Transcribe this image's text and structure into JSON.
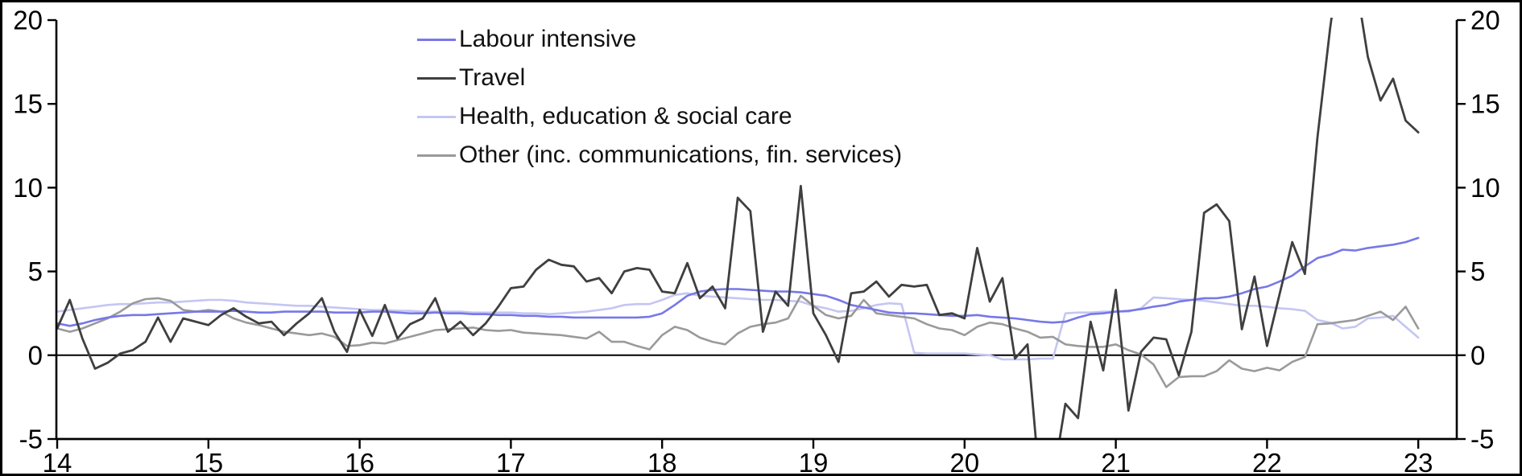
{
  "chart_data": {
    "type": "line",
    "title": "",
    "xlabel": "",
    "ylabel": "",
    "frequency": "monthly",
    "x_start": "Jan 2014",
    "x_end": "Jan 2023",
    "ylim": [
      -5,
      20
    ],
    "grid": false,
    "zero_line": true,
    "legend_position": "top-left-inside",
    "y_ticks": [
      {
        "value": 20,
        "label": "20"
      },
      {
        "value": 15,
        "label": "15"
      },
      {
        "value": 10,
        "label": "10"
      },
      {
        "value": 5,
        "label": "5"
      },
      {
        "value": 0,
        "label": "0"
      },
      {
        "value": -5,
        "label": "-5"
      }
    ],
    "x_ticks": [
      {
        "year": 14,
        "label": "14"
      },
      {
        "year": 15,
        "label": "15"
      },
      {
        "year": 16,
        "label": "16"
      },
      {
        "year": 17,
        "label": "17"
      },
      {
        "year": 18,
        "label": "18"
      },
      {
        "year": 19,
        "label": "19"
      },
      {
        "year": 20,
        "label": "20"
      },
      {
        "year": 21,
        "label": "21"
      },
      {
        "year": 22,
        "label": "22"
      },
      {
        "year": 23,
        "label": "23"
      }
    ],
    "axis_color": "#000000",
    "series": [
      {
        "name": "Labour intensive",
        "color": "#7678e8",
        "values": [
          1.9,
          1.75,
          1.9,
          2.1,
          2.25,
          2.35,
          2.4,
          2.4,
          2.45,
          2.5,
          2.55,
          2.6,
          2.6,
          2.6,
          2.65,
          2.6,
          2.55,
          2.55,
          2.6,
          2.6,
          2.6,
          2.6,
          2.55,
          2.55,
          2.55,
          2.6,
          2.6,
          2.55,
          2.5,
          2.5,
          2.55,
          2.5,
          2.5,
          2.45,
          2.45,
          2.4,
          2.4,
          2.35,
          2.35,
          2.3,
          2.3,
          2.25,
          2.25,
          2.25,
          2.25,
          2.25,
          2.25,
          2.3,
          2.5,
          3.0,
          3.55,
          3.8,
          3.9,
          3.95,
          3.95,
          3.9,
          3.85,
          3.8,
          3.8,
          3.75,
          3.65,
          3.55,
          3.3,
          3.0,
          2.85,
          2.7,
          2.55,
          2.5,
          2.5,
          2.45,
          2.4,
          2.35,
          2.35,
          2.4,
          2.3,
          2.25,
          2.2,
          2.1,
          2.0,
          1.95,
          2.0,
          2.25,
          2.45,
          2.5,
          2.6,
          2.65,
          2.75,
          2.9,
          3.0,
          3.2,
          3.3,
          3.4,
          3.4,
          3.5,
          3.7,
          3.95,
          4.1,
          4.4,
          4.75,
          5.3,
          5.8,
          6.0,
          6.3,
          6.25,
          6.4,
          6.5,
          6.6,
          6.75,
          7.0
        ]
      },
      {
        "name": "Travel",
        "color": "#3f3f3f",
        "values": [
          1.6,
          3.3,
          1.0,
          -0.8,
          -0.45,
          0.1,
          0.3,
          0.8,
          2.25,
          0.8,
          2.2,
          2.0,
          1.8,
          2.4,
          2.8,
          2.3,
          1.9,
          2.0,
          1.2,
          1.9,
          2.5,
          3.4,
          1.4,
          0.2,
          2.7,
          1.15,
          3.0,
          1.0,
          1.85,
          2.2,
          3.4,
          1.4,
          2.0,
          1.2,
          1.9,
          2.9,
          4.0,
          4.1,
          5.1,
          5.7,
          5.4,
          5.3,
          4.4,
          4.6,
          3.7,
          5.0,
          5.2,
          5.1,
          3.8,
          3.7,
          5.5,
          3.4,
          4.1,
          2.8,
          9.4,
          8.6,
          1.4,
          3.8,
          2.95,
          10.1,
          2.5,
          1.2,
          -0.4,
          3.7,
          3.8,
          4.4,
          3.5,
          4.2,
          4.1,
          4.2,
          2.4,
          2.5,
          2.2,
          6.4,
          3.2,
          4.6,
          -0.2,
          0.65,
          -8.0,
          -7.5,
          -2.9,
          -3.75,
          2.0,
          -0.9,
          3.9,
          -3.3,
          0.2,
          1.05,
          0.95,
          -1.2,
          1.4,
          8.5,
          9.0,
          8.0,
          1.55,
          4.7,
          0.55,
          3.65,
          6.75,
          4.85,
          13.0,
          19.5,
          25.0,
          22.5,
          17.8,
          15.2,
          16.5,
          14.0,
          13.3
        ]
      },
      {
        "name": "Health, education & social care",
        "color": "#c4c6f2",
        "values": [
          2.6,
          2.7,
          2.8,
          2.9,
          3.0,
          3.05,
          3.05,
          3.1,
          3.15,
          3.15,
          3.2,
          3.25,
          3.3,
          3.3,
          3.25,
          3.15,
          3.1,
          3.05,
          3.0,
          2.95,
          2.95,
          2.9,
          2.85,
          2.8,
          2.75,
          2.7,
          2.7,
          2.65,
          2.65,
          2.6,
          2.6,
          2.6,
          2.6,
          2.55,
          2.55,
          2.55,
          2.55,
          2.5,
          2.5,
          2.45,
          2.5,
          2.55,
          2.6,
          2.7,
          2.8,
          3.0,
          3.05,
          3.05,
          3.3,
          3.6,
          3.7,
          3.55,
          3.5,
          3.45,
          3.4,
          3.35,
          3.3,
          3.3,
          3.25,
          3.2,
          2.95,
          2.8,
          2.6,
          2.65,
          2.8,
          3.0,
          3.1,
          3.05,
          0.15,
          0.1,
          0.1,
          0.1,
          0.1,
          0.05,
          0.0,
          -0.25,
          -0.25,
          -0.25,
          -0.2,
          -0.2,
          2.5,
          2.55,
          2.55,
          2.6,
          2.6,
          2.6,
          2.8,
          3.45,
          3.4,
          3.35,
          3.3,
          3.25,
          3.15,
          3.05,
          2.95,
          2.95,
          2.9,
          2.8,
          2.75,
          2.65,
          2.1,
          1.95,
          1.6,
          1.7,
          2.2,
          2.25,
          2.35,
          1.7,
          1.05
        ]
      },
      {
        "name": "Other (inc. communications, fin. services)",
        "color": "#9a9a9a",
        "values": [
          1.6,
          1.4,
          1.6,
          1.9,
          2.2,
          2.6,
          3.1,
          3.35,
          3.4,
          3.25,
          2.7,
          2.6,
          2.7,
          2.6,
          2.2,
          1.95,
          1.8,
          1.6,
          1.4,
          1.3,
          1.2,
          1.3,
          1.1,
          0.55,
          0.6,
          0.75,
          0.7,
          0.9,
          1.1,
          1.3,
          1.5,
          1.55,
          1.6,
          1.65,
          1.5,
          1.45,
          1.5,
          1.35,
          1.3,
          1.25,
          1.2,
          1.1,
          1.0,
          1.4,
          0.8,
          0.8,
          0.55,
          0.35,
          1.2,
          1.7,
          1.5,
          1.05,
          0.8,
          0.65,
          1.3,
          1.7,
          1.85,
          1.95,
          2.2,
          3.55,
          2.95,
          2.4,
          2.2,
          2.35,
          3.3,
          2.5,
          2.4,
          2.3,
          2.2,
          1.85,
          1.6,
          1.5,
          1.2,
          1.7,
          1.95,
          1.85,
          1.6,
          1.4,
          1.05,
          1.1,
          0.65,
          0.55,
          0.5,
          0.5,
          0.65,
          0.3,
          0.05,
          -0.55,
          -1.9,
          -1.3,
          -1.25,
          -1.25,
          -0.95,
          -0.3,
          -0.8,
          -0.95,
          -0.75,
          -0.9,
          -0.4,
          -0.1,
          1.85,
          1.9,
          2.0,
          2.1,
          2.35,
          2.6,
          2.1,
          2.9,
          1.6
        ]
      }
    ]
  }
}
